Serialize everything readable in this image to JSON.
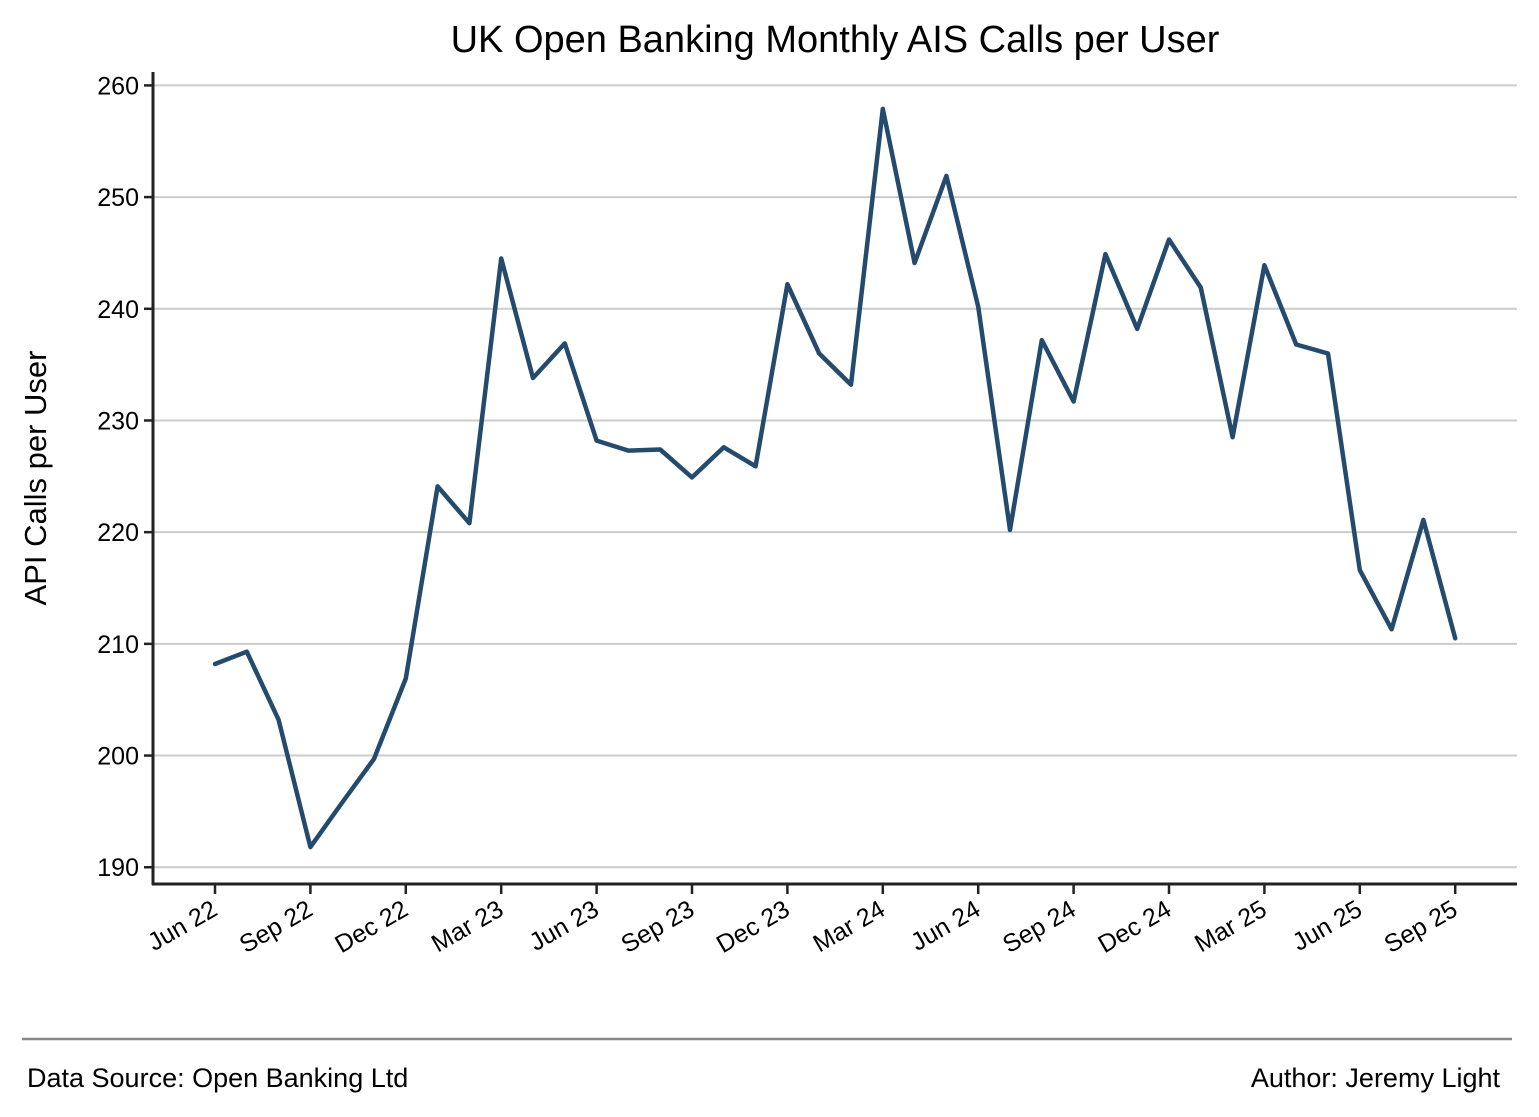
{
  "chart_data": {
    "type": "line",
    "title": "UK Open Banking Monthly AIS Calls per User",
    "xlabel": "",
    "ylabel": "API Calls per User",
    "ylim": [
      188.5,
      261.2
    ],
    "yticks": [
      190,
      200,
      210,
      220,
      230,
      240,
      250,
      260
    ],
    "grid": "horizontal",
    "legend": "none",
    "x_tick_labels": [
      "Jun 22",
      "Sep 22",
      "Dec 22",
      "Mar 23",
      "Jun 23",
      "Sep 23",
      "Dec 23",
      "Mar 24",
      "Jun 24",
      "Sep 24",
      "Dec 24",
      "Mar 25",
      "Jun 25",
      "Sep 25"
    ],
    "x": [
      "2022-06",
      "2022-07",
      "2022-08",
      "2022-09",
      "2022-10",
      "2022-11",
      "2022-12",
      "2023-01",
      "2023-02",
      "2023-03",
      "2023-04",
      "2023-05",
      "2023-06",
      "2023-07",
      "2023-08",
      "2023-09",
      "2023-10",
      "2023-11",
      "2023-12",
      "2024-01",
      "2024-02",
      "2024-03",
      "2024-04",
      "2024-05",
      "2024-06",
      "2024-07",
      "2024-08",
      "2024-09",
      "2024-10",
      "2024-11",
      "2024-12",
      "2025-01",
      "2025-02",
      "2025-03",
      "2025-04",
      "2025-05",
      "2025-06",
      "2025-07",
      "2025-08",
      "2025-09"
    ],
    "series": [
      {
        "values": [
          208.2,
          209.3,
          203.2,
          191.8,
          195.8,
          199.7,
          206.9,
          224.1,
          220.8,
          244.5,
          233.8,
          236.9,
          228.2,
          227.3,
          227.4,
          224.9,
          227.6,
          225.9,
          242.2,
          236.0,
          233.2,
          257.9,
          244.1,
          251.9,
          240.2,
          220.2,
          237.2,
          231.7,
          244.9,
          238.2,
          246.2,
          241.9,
          228.5,
          243.9,
          236.8,
          236.0,
          216.6,
          211.3,
          221.1,
          210.5
        ],
        "color": "#244a6e"
      }
    ]
  },
  "footer": {
    "source": "Data Source: Open Banking Ltd",
    "author": "Author: Jeremy Light"
  },
  "colors": {
    "line": "#244a6e",
    "grid": "#cccccc",
    "axis": "#222222",
    "footer_rule": "#888888"
  }
}
